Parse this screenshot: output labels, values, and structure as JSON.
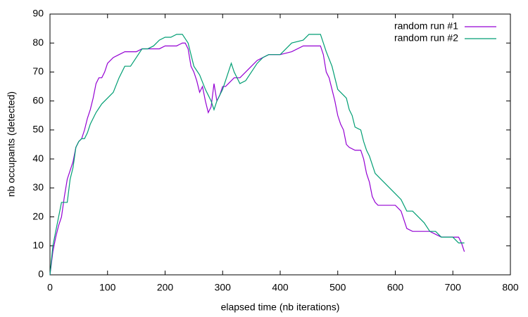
{
  "chart_data": {
    "type": "line",
    "xlabel": "elapsed time (nb iterations)",
    "ylabel": "nb occupants (detected)",
    "xlim": [
      0,
      800
    ],
    "xticks": [
      0,
      100,
      200,
      300,
      400,
      500,
      600,
      700,
      800
    ],
    "ylim": [
      0,
      90
    ],
    "yticks": [
      0,
      10,
      20,
      30,
      40,
      50,
      60,
      70,
      80,
      90
    ],
    "legend": "top-right",
    "series": [
      {
        "name": "random run #1",
        "color": "#9400d3",
        "x": [
          0,
          5,
          10,
          15,
          20,
          25,
          30,
          35,
          40,
          45,
          50,
          55,
          60,
          65,
          70,
          75,
          80,
          85,
          90,
          95,
          100,
          110,
          120,
          130,
          140,
          150,
          160,
          170,
          180,
          190,
          200,
          210,
          220,
          230,
          235,
          240,
          245,
          250,
          255,
          260,
          265,
          270,
          275,
          280,
          285,
          290,
          295,
          300,
          305,
          310,
          320,
          330,
          340,
          350,
          360,
          370,
          380,
          390,
          400,
          420,
          440,
          460,
          470,
          475,
          480,
          485,
          490,
          495,
          500,
          505,
          510,
          515,
          520,
          530,
          540,
          545,
          550,
          555,
          560,
          565,
          570,
          580,
          590,
          600,
          610,
          620,
          630,
          640,
          660,
          670,
          680,
          690,
          700,
          710,
          715,
          720
        ],
        "values": [
          0,
          8,
          13,
          17,
          20,
          27,
          33,
          36,
          39,
          44,
          46,
          47,
          50,
          54,
          57,
          61,
          66,
          68,
          68,
          70,
          73,
          75,
          76,
          77,
          77,
          77,
          78,
          78,
          78,
          78,
          79,
          79,
          79,
          80,
          80,
          78,
          72,
          70,
          67,
          63,
          65,
          60,
          56,
          58,
          66,
          60,
          62,
          65,
          65,
          66,
          68,
          68,
          70,
          72,
          74,
          75,
          76,
          76,
          76,
          77,
          79,
          79,
          79,
          76,
          70,
          68,
          64,
          60,
          55,
          52,
          50,
          45,
          44,
          43,
          43,
          40,
          35,
          32,
          27,
          25,
          24,
          24,
          24,
          24,
          22,
          16,
          15,
          15,
          15,
          14,
          13,
          13,
          13,
          13,
          11,
          8
        ]
      },
      {
        "name": "random run #2",
        "color": "#009e73",
        "x": [
          0,
          5,
          10,
          15,
          20,
          30,
          35,
          40,
          45,
          50,
          55,
          60,
          65,
          70,
          75,
          80,
          90,
          100,
          110,
          120,
          130,
          140,
          150,
          160,
          170,
          180,
          190,
          200,
          210,
          220,
          230,
          240,
          250,
          260,
          270,
          275,
          280,
          285,
          290,
          300,
          305,
          310,
          315,
          320,
          330,
          340,
          350,
          360,
          370,
          380,
          400,
          420,
          440,
          450,
          470,
          475,
          480,
          490,
          500,
          510,
          515,
          520,
          525,
          530,
          540,
          545,
          550,
          555,
          560,
          565,
          570,
          580,
          590,
          600,
          610,
          620,
          630,
          640,
          650,
          660,
          670,
          680,
          690,
          700,
          710,
          720
        ],
        "values": [
          0,
          10,
          15,
          20,
          25,
          25,
          33,
          37,
          44,
          46,
          47,
          47,
          49,
          52,
          54,
          56,
          59,
          61,
          63,
          68,
          72,
          72,
          75,
          78,
          78,
          79,
          81,
          82,
          82,
          83,
          83,
          80,
          72,
          69,
          64,
          62,
          60,
          57,
          60,
          64,
          67,
          70,
          73,
          70,
          66,
          67,
          70,
          73,
          75,
          76,
          76,
          80,
          81,
          83,
          83,
          80,
          77,
          72,
          64,
          62,
          61,
          57,
          55,
          51,
          50,
          46,
          43,
          41,
          38,
          35,
          34,
          32,
          30,
          28,
          26,
          22,
          22,
          20,
          18,
          15,
          15,
          13,
          13,
          13,
          11,
          11
        ]
      }
    ]
  }
}
